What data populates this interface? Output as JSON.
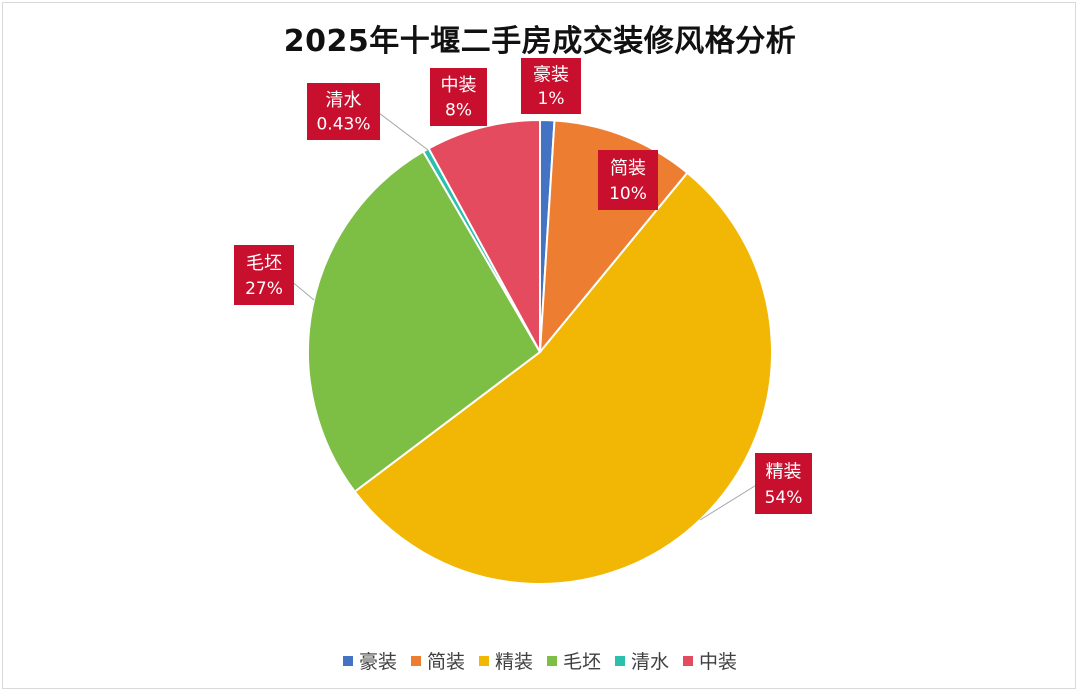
{
  "chart_data": {
    "type": "pie",
    "title": "2025年十堰二手房成交装修风格分析",
    "slices": [
      {
        "name": "豪装",
        "value": 1,
        "label": "1%",
        "color": "#4472C4"
      },
      {
        "name": "简装",
        "value": 10,
        "label": "10%",
        "color": "#ED7D31"
      },
      {
        "name": "精装",
        "value": 54,
        "label": "54%",
        "color": "#F2B705"
      },
      {
        "name": "毛坯",
        "value": 27,
        "label": "27%",
        "color": "#7DBE45"
      },
      {
        "name": "清水",
        "value": 0.43,
        "label": "0.43%",
        "color": "#2BBFAE"
      },
      {
        "name": "中装",
        "value": 8,
        "label": "8%",
        "color": "#E54B5E"
      }
    ],
    "label_style": {
      "background": "#C8102E",
      "text_color": "#ffffff"
    },
    "legend_position": "bottom"
  }
}
